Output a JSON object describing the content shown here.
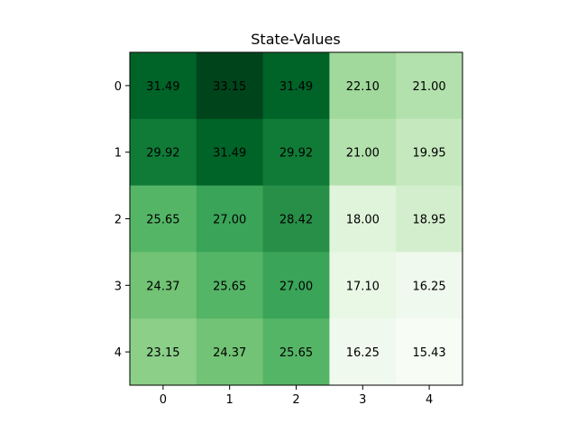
{
  "chart_data": {
    "type": "heatmap",
    "title": "State-Values",
    "xlabel": "",
    "ylabel": "",
    "x_ticks": [
      "0",
      "1",
      "2",
      "3",
      "4"
    ],
    "y_ticks": [
      "0",
      "1",
      "2",
      "3",
      "4"
    ],
    "colormap": "Greens",
    "grid": false,
    "values": [
      [
        31.49,
        33.15,
        31.49,
        22.1,
        21.0
      ],
      [
        29.92,
        31.49,
        29.92,
        21.0,
        19.95
      ],
      [
        25.65,
        27.0,
        28.42,
        18.0,
        18.95
      ],
      [
        24.37,
        25.65,
        27.0,
        17.1,
        16.25
      ],
      [
        23.15,
        24.37,
        25.65,
        16.25,
        15.43
      ]
    ]
  }
}
